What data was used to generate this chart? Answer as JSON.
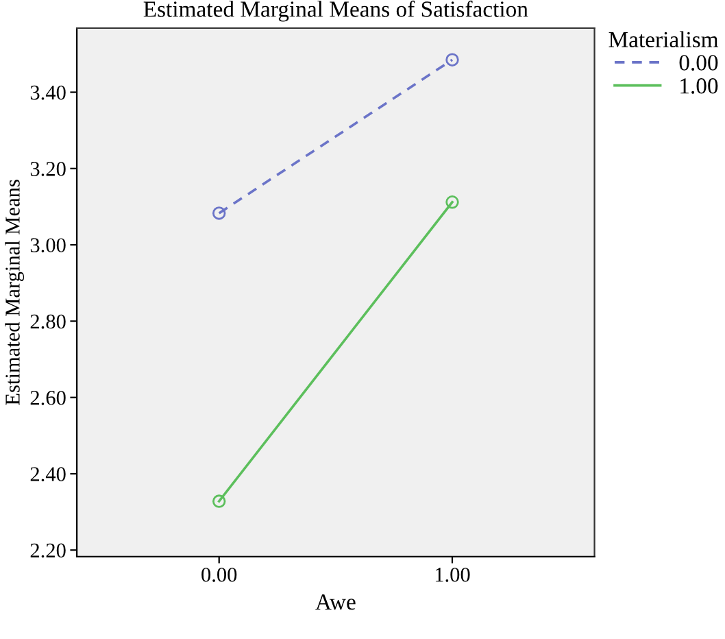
{
  "chart_data": {
    "type": "line",
    "title": "Estimated Marginal Means of Satisfaction",
    "xlabel": "Awe",
    "ylabel": "Estimated Marginal Means",
    "legend_title": "Materialism",
    "x": [
      0,
      1
    ],
    "series": [
      {
        "name": "0.00",
        "color": "#6b74c8",
        "values": [
          3.083,
          3.485
        ],
        "line_style": "dashed"
      },
      {
        "name": "1.00",
        "color": "#5cbf5c",
        "values": [
          2.328,
          3.112
        ],
        "line_style": "solid"
      }
    ],
    "marker": "circle",
    "xlim": [
      -0.61,
      1.61
    ],
    "xticks": [
      {
        "value": 0,
        "label": "0.00"
      },
      {
        "value": 1,
        "label": "1.00"
      }
    ],
    "ylim": [
      2.183,
      3.568
    ],
    "yticks": [
      {
        "value": 2.2,
        "label": "2.20"
      },
      {
        "value": 2.4,
        "label": "2.40"
      },
      {
        "value": 2.6,
        "label": "2.60"
      },
      {
        "value": 2.8,
        "label": "2.80"
      },
      {
        "value": 3.0,
        "label": "3.00"
      },
      {
        "value": 3.2,
        "label": "3.20"
      },
      {
        "value": 3.4,
        "label": "3.40"
      }
    ],
    "grid": false,
    "legend": "top right"
  }
}
